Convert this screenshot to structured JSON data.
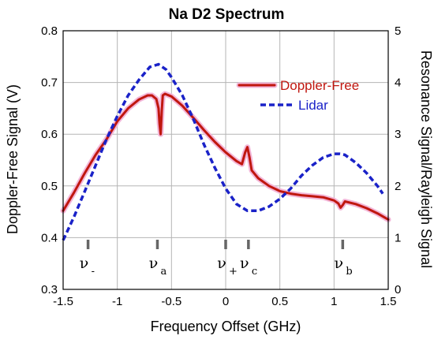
{
  "chart_data": {
    "type": "line",
    "title": "Na D2 Spectrum",
    "xlabel": "Frequency Offset (GHz)",
    "ylabel_left": "Doppler-Free Signal (V)",
    "ylabel_right": "Resonance Signal/Rayleigh Signal",
    "xlim": [
      -1.5,
      1.5
    ],
    "ylim_left": [
      0.3,
      0.8
    ],
    "ylim_right": [
      0,
      5
    ],
    "xticks": [
      "-1.5",
      "-1",
      "-0.5",
      "0",
      "0.5",
      "1",
      "1.5"
    ],
    "yticks_left": [
      "0.3",
      "0.4",
      "0.5",
      "0.6",
      "0.7",
      "0.8"
    ],
    "yticks_right": [
      "0",
      "1",
      "2",
      "3",
      "4",
      "5"
    ],
    "grid": true,
    "legend_position": "top-right",
    "colors": {
      "doppler_free": "#c0170f",
      "doppler_free_halo": "#f3b6d8",
      "lidar": "#1a22c8"
    },
    "series": [
      {
        "name": "Doppler-Free",
        "axis": "left",
        "x": [
          -1.5,
          -1.4,
          -1.3,
          -1.2,
          -1.1,
          -1.0,
          -0.9,
          -0.8,
          -0.72,
          -0.68,
          -0.64,
          -0.62,
          -0.61,
          -0.6,
          -0.59,
          -0.58,
          -0.56,
          -0.5,
          -0.4,
          -0.3,
          -0.2,
          -0.1,
          0.0,
          0.1,
          0.15,
          0.18,
          0.2,
          0.22,
          0.24,
          0.3,
          0.4,
          0.5,
          0.6,
          0.7,
          0.8,
          0.9,
          1.0,
          1.04,
          1.06,
          1.08,
          1.1,
          1.2,
          1.3,
          1.4,
          1.5
        ],
        "y": [
          0.452,
          0.487,
          0.525,
          0.56,
          0.59,
          0.625,
          0.65,
          0.667,
          0.675,
          0.675,
          0.668,
          0.65,
          0.62,
          0.6,
          0.645,
          0.675,
          0.678,
          0.673,
          0.655,
          0.632,
          0.608,
          0.585,
          0.565,
          0.548,
          0.542,
          0.565,
          0.575,
          0.555,
          0.53,
          0.515,
          0.5,
          0.49,
          0.485,
          0.482,
          0.48,
          0.478,
          0.472,
          0.466,
          0.458,
          0.463,
          0.47,
          0.465,
          0.457,
          0.447,
          0.435
        ]
      },
      {
        "name": "Lidar",
        "axis": "right",
        "x": [
          -1.5,
          -1.4,
          -1.3,
          -1.2,
          -1.1,
          -1.0,
          -0.9,
          -0.8,
          -0.7,
          -0.62,
          -0.55,
          -0.5,
          -0.4,
          -0.3,
          -0.2,
          -0.1,
          0.0,
          0.1,
          0.2,
          0.3,
          0.4,
          0.5,
          0.6,
          0.7,
          0.8,
          0.9,
          1.0,
          1.05,
          1.1,
          1.2,
          1.3,
          1.4,
          1.45
        ],
        "y": [
          0.95,
          1.4,
          1.9,
          2.4,
          2.9,
          3.35,
          3.75,
          4.05,
          4.3,
          4.35,
          4.25,
          4.1,
          3.75,
          3.3,
          2.8,
          2.35,
          1.95,
          1.65,
          1.52,
          1.52,
          1.6,
          1.75,
          1.95,
          2.2,
          2.4,
          2.55,
          2.62,
          2.62,
          2.6,
          2.45,
          2.25,
          2.0,
          1.85
        ]
      }
    ],
    "markers": [
      {
        "x": -1.27,
        "symbol": "ν",
        "sub": "-"
      },
      {
        "x": -0.63,
        "symbol": "ν",
        "sub": "a"
      },
      {
        "x": 0.0,
        "symbol": "ν",
        "sub": "+"
      },
      {
        "x": 0.21,
        "symbol": "ν",
        "sub": "c"
      },
      {
        "x": 1.08,
        "symbol": "ν",
        "sub": "b"
      }
    ]
  }
}
